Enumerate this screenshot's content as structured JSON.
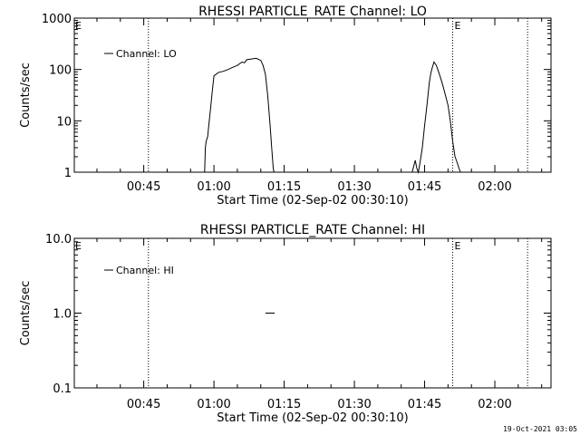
{
  "footer": {
    "timestamp": "19-Oct-2021 03:05"
  },
  "chart_data": [
    {
      "type": "line",
      "title": "RHESSI PARTICLE_RATE Channel: LO",
      "xlabel": "Start Time (02-Sep-02 00:30:10)",
      "ylabel": "Counts/sec",
      "yscale": "log",
      "ylim": [
        1,
        1000
      ],
      "xlim": [
        "00:30:10",
        "02:12:00"
      ],
      "x_ticks": [
        "00:45",
        "01:00",
        "01:15",
        "01:30",
        "01:45",
        "02:00"
      ],
      "y_ticks": [
        "1",
        "10",
        "100",
        "1000"
      ],
      "grid": false,
      "legend": {
        "position": "top-left",
        "entries": [
          "Channel: LO"
        ]
      },
      "annotations": [
        {
          "text": "E",
          "x": "01:51"
        }
      ],
      "vlines": [
        "00:46",
        "01:51",
        "02:07"
      ],
      "series": [
        {
          "name": "Channel: LO",
          "x": [
            "00:58:00",
            "00:58:10",
            "00:58:20",
            "00:58:40",
            "00:59:00",
            "00:59:20",
            "00:59:40",
            "01:00:00",
            "01:01:00",
            "01:02:00",
            "01:03:00",
            "01:04:00",
            "01:05:00",
            "01:06:00",
            "01:06:30",
            "01:07:00",
            "01:08:00",
            "01:09:00",
            "01:10:00",
            "01:10:30",
            "01:11:00",
            "01:11:30",
            "01:12:00",
            "01:12:20",
            "01:12:40",
            "01:12:50",
            "01:42:20",
            "01:42:40",
            "01:43:00",
            "01:43:20",
            "01:43:40",
            "01:44:00",
            "01:44:30",
            "01:45:00",
            "01:45:30",
            "01:46:00",
            "01:46:20",
            "01:46:40",
            "01:47:00",
            "01:47:30",
            "01:48:00",
            "01:48:30",
            "01:49:00",
            "01:49:30",
            "01:50:00",
            "01:50:30",
            "01:51:00",
            "01:51:30",
            "01:52:00",
            "01:52:20",
            "01:52:40"
          ],
          "y": [
            1,
            3,
            4,
            5,
            10,
            20,
            40,
            75,
            88,
            92,
            100,
            110,
            120,
            140,
            135,
            155,
            160,
            165,
            150,
            120,
            80,
            30,
            8,
            3,
            1.2,
            1,
            1,
            1.3,
            1.7,
            1.2,
            1,
            1.5,
            3,
            8,
            20,
            55,
            85,
            110,
            140,
            120,
            90,
            65,
            45,
            30,
            20,
            10,
            4,
            2,
            1.5,
            1.2,
            1
          ]
        }
      ]
    },
    {
      "type": "line",
      "title": "RHESSI PARTICLE_RATE Channel: HI",
      "xlabel": "Start Time (02-Sep-02 00:30:10)",
      "ylabel": "Counts/sec",
      "yscale": "log",
      "ylim": [
        0.1,
        10
      ],
      "xlim": [
        "00:30:10",
        "02:12:00"
      ],
      "x_ticks": [
        "00:45",
        "01:00",
        "01:15",
        "01:30",
        "01:45",
        "02:00"
      ],
      "y_ticks": [
        "0.1",
        "1.0",
        "10.0"
      ],
      "grid": false,
      "legend": {
        "position": "top-left",
        "entries": [
          "Channel: HI"
        ]
      },
      "annotations": [
        {
          "text": "E",
          "x": "01:51"
        }
      ],
      "vlines": [
        "00:46",
        "01:51",
        "02:07"
      ],
      "series": [
        {
          "name": "Channel: HI",
          "x": [
            "01:11:00",
            "01:13:00"
          ],
          "y": [
            1.0,
            1.0
          ]
        }
      ]
    }
  ]
}
